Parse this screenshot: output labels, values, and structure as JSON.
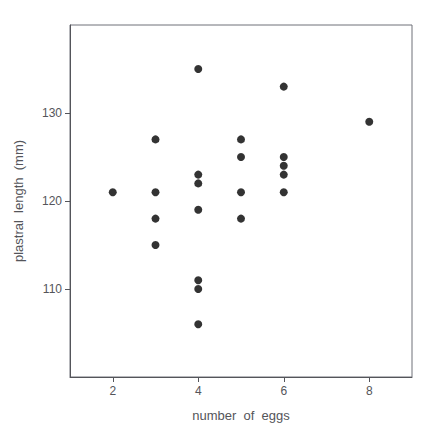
{
  "chart_data": {
    "type": "scatter",
    "x": [
      2,
      3,
      3,
      3,
      3,
      4,
      4,
      4,
      4,
      4,
      4,
      4,
      5,
      5,
      5,
      5,
      6,
      6,
      6,
      6,
      6,
      8
    ],
    "values": [
      121,
      127,
      121,
      118,
      115,
      135,
      123,
      122,
      119,
      111,
      110,
      106,
      127,
      125,
      121,
      118,
      133,
      125,
      124,
      123,
      121,
      129
    ],
    "xlabel": "number  of  eggs",
    "ylabel": "plastral  length  (mm)",
    "xlim": [
      1,
      9
    ],
    "ylim": [
      100,
      140
    ],
    "xticks": [
      2,
      4,
      6,
      8
    ],
    "yticks": [
      110,
      120,
      130
    ],
    "color": "black",
    "grid": false
  }
}
